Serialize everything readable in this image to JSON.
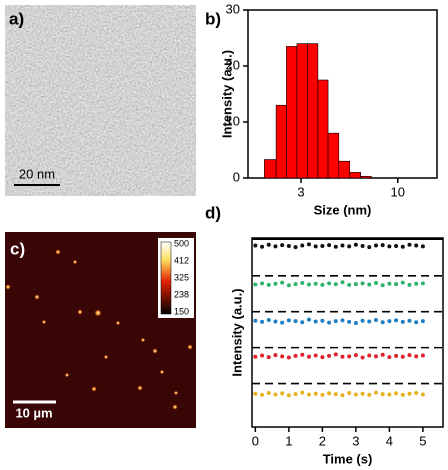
{
  "panels": {
    "a": {
      "label": "a)",
      "scale_bar": "20 nm"
    },
    "c": {
      "label": "c)",
      "scale_bar": "10 µm",
      "colorbar_ticks": [
        500,
        412,
        325,
        238,
        150
      ]
    }
  },
  "chart_data": [
    {
      "type": "histogram",
      "label": "b)",
      "xlabel": "Size (nm)",
      "ylabel": "Intensity (a.u.)",
      "log_x": true,
      "bins": [
        1.9,
        2.2,
        2.5,
        2.85,
        3.25,
        3.7,
        4.2,
        4.8,
        5.5,
        6.3,
        7.2
      ],
      "values": [
        3.3,
        13,
        23.5,
        24,
        24,
        17.5,
        8,
        3,
        1,
        0.3
      ],
      "color": "#ff0000",
      "xlim": [
        1.55,
        16.3
      ],
      "xticks": [
        3,
        10
      ],
      "ylim": [
        0,
        30
      ],
      "yticks": [
        0,
        10,
        20,
        30
      ]
    },
    {
      "type": "scatter",
      "label": "d)",
      "xlabel": "Time (s)",
      "ylabel": "Intensity (a.u.)",
      "x": [
        0,
        0.2,
        0.4,
        0.6,
        0.8,
        1,
        1.2,
        1.4,
        1.6,
        1.8,
        2,
        2.2,
        2.4,
        2.6,
        2.8,
        3,
        3.2,
        3.4,
        3.6,
        3.8,
        4,
        4.2,
        4.4,
        4.6,
        4.8,
        5
      ],
      "series": [
        {
          "color": "#111111",
          "values": [
            4.8,
            4.77,
            4.82,
            4.78,
            4.81,
            4.79,
            4.76,
            4.8,
            4.83,
            4.78,
            4.79,
            4.81,
            4.77,
            4.8,
            4.78,
            4.82,
            4.79,
            4.76,
            4.8,
            4.81,
            4.78,
            4.79,
            4.77,
            4.82,
            4.8,
            4.78
          ]
        },
        {
          "color": "#2db36a",
          "values": [
            3.77,
            3.8,
            3.76,
            3.79,
            3.82,
            3.75,
            3.78,
            3.81,
            3.77,
            3.79,
            3.76,
            3.8,
            3.78,
            3.83,
            3.76,
            3.78,
            3.8,
            3.77,
            3.81,
            3.75,
            3.79,
            3.78,
            3.82,
            3.76,
            3.79,
            3.8
          ]
        },
        {
          "color": "#1f7fc4",
          "values": [
            2.81,
            2.78,
            2.83,
            2.79,
            2.76,
            2.82,
            2.8,
            2.77,
            2.84,
            2.79,
            2.81,
            2.76,
            2.8,
            2.82,
            2.78,
            2.75,
            2.81,
            2.79,
            2.83,
            2.77,
            2.8,
            2.82,
            2.78,
            2.81,
            2.77,
            2.8
          ]
        },
        {
          "color": "#e0202a",
          "values": [
            1.86,
            1.89,
            1.85,
            1.9,
            1.87,
            1.84,
            1.88,
            1.91,
            1.86,
            1.89,
            1.85,
            1.88,
            1.92,
            1.86,
            1.87,
            1.9,
            1.84,
            1.89,
            1.87,
            1.91,
            1.85,
            1.88,
            1.86,
            1.9,
            1.87,
            1.89
          ]
        },
        {
          "color": "#e6b020",
          "values": [
            0.88,
            0.85,
            0.9,
            0.86,
            0.89,
            0.84,
            0.87,
            0.91,
            0.86,
            0.88,
            0.85,
            0.89,
            0.87,
            0.84,
            0.9,
            0.86,
            0.88,
            0.85,
            0.91,
            0.87,
            0.86,
            0.89,
            0.85,
            0.88,
            0.9,
            0.86
          ]
        }
      ],
      "hlines": [
        4.0,
        3.05,
        2.1,
        1.15
      ],
      "xlim": [
        -0.1,
        5.6
      ],
      "xticks": [
        0,
        1,
        2,
        3,
        4,
        5
      ],
      "ylim": [
        0,
        5
      ]
    }
  ]
}
